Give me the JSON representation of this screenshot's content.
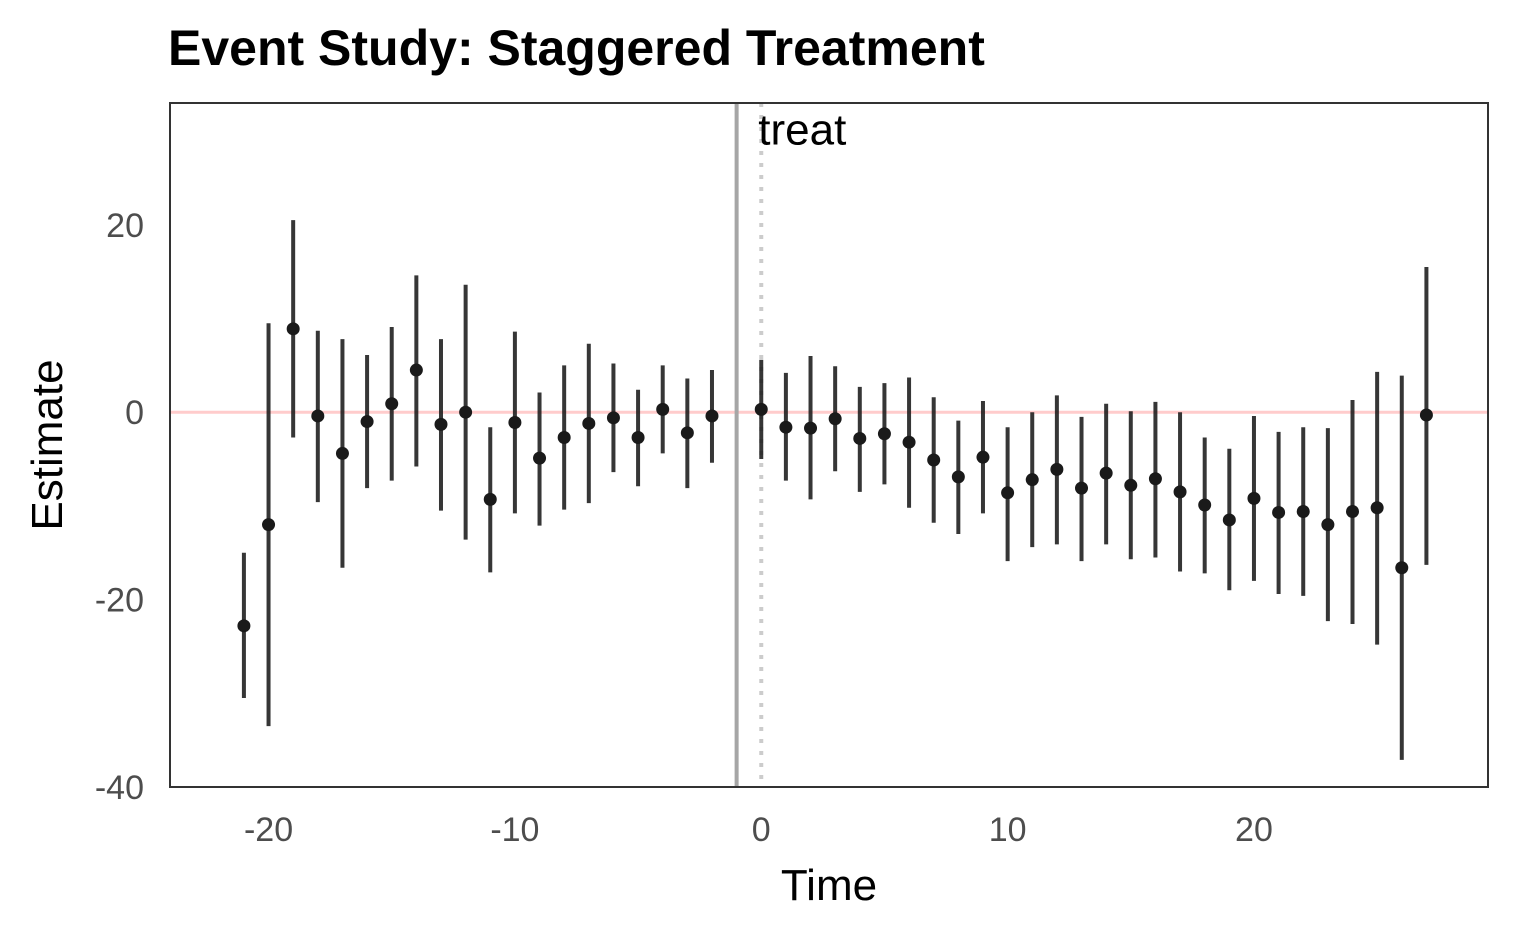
{
  "chart_data": {
    "type": "scatter",
    "title": "Event Study: Staggered Treatment",
    "xlabel": "Time",
    "ylabel": "Estimate",
    "xlim": [
      -24,
      29.5
    ],
    "ylim": [
      -40,
      33
    ],
    "x_ticks": [
      -20,
      -10,
      0,
      10,
      20
    ],
    "y_ticks": [
      20,
      0,
      -20,
      -40
    ],
    "x_tick_labels": [
      "-20",
      "-10",
      "0",
      "10",
      "20"
    ],
    "y_tick_labels": [
      "20",
      "0",
      "-20",
      "-40"
    ],
    "grid": false,
    "reference_lines": {
      "horizontal_zero": {
        "y": 0,
        "color": "#ffcccc"
      },
      "solid_vertical": {
        "x": -1,
        "color": "#a6a6a6"
      },
      "dotted_vertical": {
        "x": 0,
        "color": "#cccccc"
      }
    },
    "annotation": {
      "text": "treat",
      "x": 0,
      "y": 29
    },
    "point_color": "#1a1a1a",
    "points": [
      {
        "x": -21,
        "y": -22.8,
        "lo": -30.5,
        "hi": -15
      },
      {
        "x": -20,
        "y": -12.0,
        "lo": -33.5,
        "hi": 9.5
      },
      {
        "x": -19,
        "y": 8.9,
        "lo": -2.7,
        "hi": 20.5
      },
      {
        "x": -18,
        "y": -0.4,
        "lo": -9.6,
        "hi": 8.7
      },
      {
        "x": -17,
        "y": -4.4,
        "lo": -16.6,
        "hi": 7.8
      },
      {
        "x": -16,
        "y": -1.0,
        "lo": -8.1,
        "hi": 6.1
      },
      {
        "x": -15,
        "y": 0.9,
        "lo": -7.3,
        "hi": 9.1
      },
      {
        "x": -14,
        "y": 4.5,
        "lo": -5.8,
        "hi": 14.6
      },
      {
        "x": -13,
        "y": -1.3,
        "lo": -10.5,
        "hi": 7.8
      },
      {
        "x": -12,
        "y": 0.0,
        "lo": -13.6,
        "hi": 13.6
      },
      {
        "x": -11,
        "y": -9.3,
        "lo": -17.1,
        "hi": -1.6
      },
      {
        "x": -10,
        "y": -1.1,
        "lo": -10.8,
        "hi": 8.6
      },
      {
        "x": -9,
        "y": -4.9,
        "lo": -12.1,
        "hi": 2.1
      },
      {
        "x": -8,
        "y": -2.7,
        "lo": -10.4,
        "hi": 5.0
      },
      {
        "x": -7,
        "y": -1.2,
        "lo": -9.7,
        "hi": 7.3
      },
      {
        "x": -6,
        "y": -0.6,
        "lo": -6.4,
        "hi": 5.2
      },
      {
        "x": -5,
        "y": -2.7,
        "lo": -7.9,
        "hi": 2.4
      },
      {
        "x": -4,
        "y": 0.3,
        "lo": -4.4,
        "hi": 5.0
      },
      {
        "x": -3,
        "y": -2.2,
        "lo": -8.1,
        "hi": 3.6
      },
      {
        "x": -2,
        "y": -0.4,
        "lo": -5.4,
        "hi": 4.5
      },
      {
        "x": 0,
        "y": 0.3,
        "lo": -5.0,
        "hi": 5.6
      },
      {
        "x": 1,
        "y": -1.6,
        "lo": -7.3,
        "hi": 4.2
      },
      {
        "x": 2,
        "y": -1.7,
        "lo": -9.3,
        "hi": 6.0
      },
      {
        "x": 3,
        "y": -0.7,
        "lo": -6.3,
        "hi": 4.9
      },
      {
        "x": 4,
        "y": -2.8,
        "lo": -8.5,
        "hi": 2.7
      },
      {
        "x": 5,
        "y": -2.3,
        "lo": -7.7,
        "hi": 3.1
      },
      {
        "x": 6,
        "y": -3.2,
        "lo": -10.2,
        "hi": 3.7
      },
      {
        "x": 7,
        "y": -5.1,
        "lo": -11.8,
        "hi": 1.6
      },
      {
        "x": 8,
        "y": -6.9,
        "lo": -13.0,
        "hi": -0.9
      },
      {
        "x": 9,
        "y": -4.8,
        "lo": -10.8,
        "hi": 1.2
      },
      {
        "x": 10,
        "y": -8.6,
        "lo": -15.9,
        "hi": -1.6
      },
      {
        "x": 11,
        "y": -7.2,
        "lo": -14.4,
        "hi": 0.0
      },
      {
        "x": 12,
        "y": -6.1,
        "lo": -14.1,
        "hi": 1.8
      },
      {
        "x": 13,
        "y": -8.1,
        "lo": -15.9,
        "hi": -0.5
      },
      {
        "x": 14,
        "y": -6.5,
        "lo": -14.1,
        "hi": 0.9
      },
      {
        "x": 15,
        "y": -7.8,
        "lo": -15.7,
        "hi": 0.1
      },
      {
        "x": 16,
        "y": -7.1,
        "lo": -15.5,
        "hi": 1.1
      },
      {
        "x": 17,
        "y": -8.5,
        "lo": -17.0,
        "hi": 0.0
      },
      {
        "x": 18,
        "y": -9.9,
        "lo": -17.2,
        "hi": -2.7
      },
      {
        "x": 19,
        "y": -11.5,
        "lo": -19.0,
        "hi": -3.9
      },
      {
        "x": 20,
        "y": -9.2,
        "lo": -18.0,
        "hi": -0.4
      },
      {
        "x": 21,
        "y": -10.7,
        "lo": -19.4,
        "hi": -2.1
      },
      {
        "x": 22,
        "y": -10.6,
        "lo": -19.6,
        "hi": -1.6
      },
      {
        "x": 23,
        "y": -12.0,
        "lo": -22.3,
        "hi": -1.7
      },
      {
        "x": 24,
        "y": -10.6,
        "lo": -22.6,
        "hi": 1.3
      },
      {
        "x": 25,
        "y": -10.2,
        "lo": -24.8,
        "hi": 4.3
      },
      {
        "x": 26,
        "y": -16.6,
        "lo": -37.1,
        "hi": 3.9
      },
      {
        "x": 27,
        "y": -0.3,
        "lo": -16.3,
        "hi": 15.5
      }
    ]
  }
}
